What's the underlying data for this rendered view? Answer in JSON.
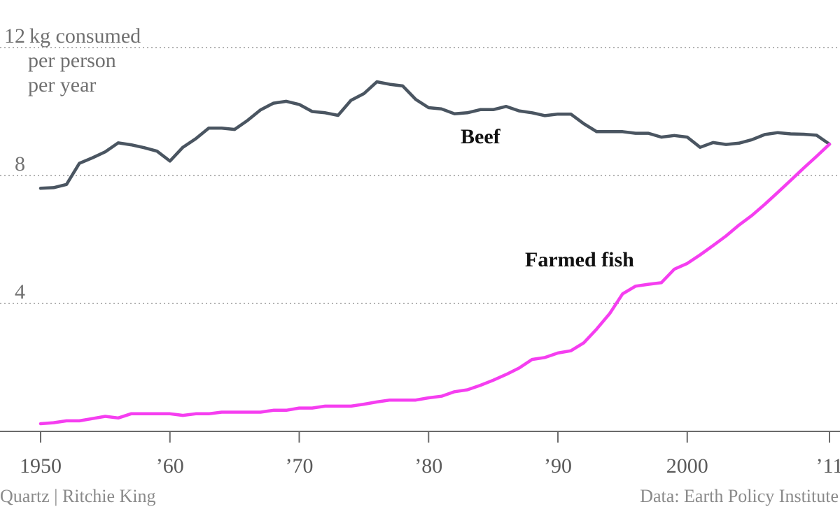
{
  "chart_data": {
    "type": "line",
    "ylabel_lines": [
      "kg consumed",
      "per person",
      "per year"
    ],
    "ylim": [
      0,
      12
    ],
    "xlim": [
      1950,
      2011
    ],
    "y_ticks": [
      {
        "value": 12,
        "label": "12"
      },
      {
        "value": 8,
        "label": "8"
      },
      {
        "value": 4,
        "label": "4"
      }
    ],
    "x_ticks": [
      {
        "value": 1950,
        "label": "1950"
      },
      {
        "value": 1960,
        "label": "’60"
      },
      {
        "value": 1970,
        "label": "’70"
      },
      {
        "value": 1980,
        "label": "’80"
      },
      {
        "value": 1990,
        "label": "’90"
      },
      {
        "value": 2000,
        "label": "2000"
      },
      {
        "value": 2011,
        "label": "’11"
      }
    ],
    "grid": true,
    "series": [
      {
        "name": "Beef",
        "color": "#4a5561",
        "x": [
          1950,
          1951,
          1952,
          1953,
          1954,
          1955,
          1956,
          1957,
          1958,
          1959,
          1960,
          1961,
          1962,
          1963,
          1964,
          1965,
          1966,
          1967,
          1968,
          1969,
          1970,
          1971,
          1972,
          1973,
          1974,
          1975,
          1976,
          1977,
          1978,
          1979,
          1980,
          1981,
          1982,
          1983,
          1984,
          1985,
          1986,
          1987,
          1988,
          1989,
          1990,
          1991,
          1992,
          1993,
          1994,
          1995,
          1996,
          1997,
          1998,
          1999,
          2000,
          2001,
          2002,
          2003,
          2004,
          2005,
          2006,
          2007,
          2008,
          2009,
          2010,
          2011
        ],
        "values": [
          7.6,
          7.62,
          7.72,
          8.38,
          8.55,
          8.74,
          9.02,
          8.96,
          8.87,
          8.76,
          8.45,
          8.88,
          9.15,
          9.48,
          9.48,
          9.44,
          9.72,
          10.05,
          10.26,
          10.32,
          10.22,
          10.0,
          9.96,
          9.88,
          10.35,
          10.56,
          10.93,
          10.85,
          10.8,
          10.38,
          10.12,
          10.08,
          9.93,
          9.96,
          10.06,
          10.06,
          10.16,
          10.02,
          9.96,
          9.87,
          9.92,
          9.92,
          9.62,
          9.37,
          9.37,
          9.37,
          9.32,
          9.32,
          9.2,
          9.25,
          9.2,
          8.88,
          9.03,
          8.97,
          9.01,
          9.12,
          9.28,
          9.34,
          9.3,
          9.29,
          9.26,
          8.98
        ]
      },
      {
        "name": "Farmed fish",
        "color": "#f53ef0",
        "x": [
          1950,
          1951,
          1952,
          1953,
          1954,
          1955,
          1956,
          1957,
          1958,
          1959,
          1960,
          1961,
          1962,
          1963,
          1964,
          1965,
          1966,
          1967,
          1968,
          1969,
          1970,
          1971,
          1972,
          1973,
          1974,
          1975,
          1976,
          1977,
          1978,
          1979,
          1980,
          1981,
          1982,
          1983,
          1984,
          1985,
          1986,
          1987,
          1988,
          1989,
          1990,
          1991,
          1992,
          1993,
          1994,
          1995,
          1996,
          1997,
          1998,
          1999,
          2000,
          2001,
          2002,
          2003,
          2004,
          2005,
          2006,
          2007,
          2008,
          2009,
          2010,
          2011
        ],
        "values": [
          0.24,
          0.27,
          0.33,
          0.33,
          0.4,
          0.47,
          0.42,
          0.55,
          0.55,
          0.55,
          0.55,
          0.5,
          0.55,
          0.55,
          0.6,
          0.6,
          0.6,
          0.6,
          0.66,
          0.66,
          0.73,
          0.73,
          0.79,
          0.79,
          0.79,
          0.85,
          0.92,
          0.98,
          0.98,
          0.98,
          1.05,
          1.1,
          1.24,
          1.3,
          1.44,
          1.6,
          1.78,
          1.98,
          2.25,
          2.31,
          2.45,
          2.52,
          2.77,
          3.2,
          3.68,
          4.3,
          4.54,
          4.6,
          4.65,
          5.07,
          5.25,
          5.52,
          5.81,
          6.11,
          6.45,
          6.75,
          7.1,
          7.47,
          7.85,
          8.23,
          8.6,
          8.98
        ]
      }
    ],
    "annotations": [
      {
        "text": "Beef",
        "series": "Beef"
      },
      {
        "text": "Farmed fish",
        "series": "Farmed fish"
      }
    ]
  },
  "footer": {
    "credit": "Quartz | Ritchie King",
    "source": "Data: Earth Policy Institute"
  }
}
